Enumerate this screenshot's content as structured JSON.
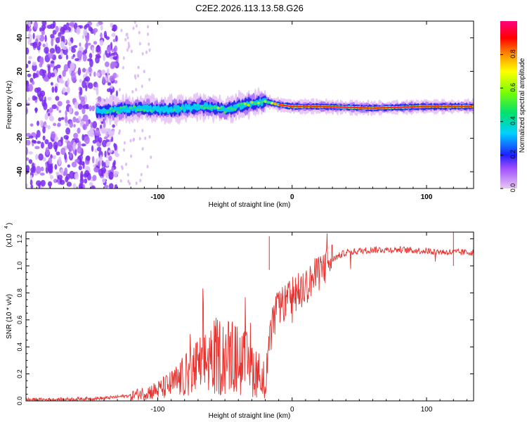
{
  "figure_title": "C2E2.2026.113.13.58.G26",
  "chart_data": [
    {
      "type": "heatmap",
      "title": "C2E2.2026.113.13.58.G26",
      "xlabel": "Height of straight line (km)",
      "ylabel": "Frequency (Hz)",
      "xlim": [
        -198,
        135
      ],
      "ylim": [
        -50,
        50
      ],
      "x_ticks": [
        -100,
        0,
        100
      ],
      "y_ticks": [
        -40,
        -20,
        0,
        20,
        40
      ],
      "colorbar": {
        "label": "Normalized spectral amplitude",
        "range": [
          0,
          1
        ],
        "ticks": [
          "0.0",
          "0.2",
          "0.4",
          "0.6",
          "0.8"
        ],
        "tick_values": [
          0.0,
          0.2,
          0.4,
          0.6,
          0.8
        ]
      },
      "ridge": {
        "description": "frequency centre of the signal band vs height",
        "x": [
          -145,
          -130,
          -110,
          -95,
          -80,
          -65,
          -50,
          -35,
          -20,
          -10,
          0,
          20,
          60,
          100,
          135
        ],
        "freq": [
          -4,
          -3,
          -2,
          -3,
          -2,
          -1,
          -3,
          0,
          2,
          0,
          -1,
          -1,
          -2,
          -1,
          -1
        ]
      },
      "noise_region_x": [
        -198,
        -130
      ],
      "signal_onset_x": -145
    },
    {
      "type": "line",
      "xlabel": "Height of straight line (km)",
      "ylabel": "SNR (10 * v/v)",
      "y_scale_label": "(x10",
      "y_scale_exp": "4",
      "xlim": [
        -198,
        135
      ],
      "ylim": [
        0,
        1.25
      ],
      "x_ticks": [
        -100,
        0,
        100
      ],
      "y_ticks": [
        "0.0",
        "0.2",
        "0.4",
        "0.6",
        "0.8",
        "1.0",
        "1.2"
      ],
      "y_tick_values": [
        0.0,
        0.2,
        0.4,
        0.6,
        0.8,
        1.0,
        1.2
      ],
      "series": [
        {
          "name": "SNR",
          "color": "#e8302c",
          "x": [
            -198,
            -180,
            -160,
            -140,
            -130,
            -120,
            -110,
            -100,
            -90,
            -80,
            -70,
            -60,
            -50,
            -40,
            -30,
            -20,
            -15,
            -10,
            -5,
            0,
            10,
            20,
            30,
            40,
            50,
            60,
            80,
            100,
            120,
            135
          ],
          "y": [
            0.01,
            0.01,
            0.015,
            0.02,
            0.03,
            0.04,
            0.06,
            0.08,
            0.12,
            0.18,
            0.25,
            0.32,
            0.34,
            0.3,
            0.25,
            0.15,
            0.55,
            0.7,
            0.72,
            0.78,
            0.85,
            0.95,
            1.05,
            1.1,
            1.11,
            1.12,
            1.12,
            1.11,
            1.1,
            1.1
          ]
        }
      ],
      "annotations": [
        {
          "x": -17,
          "y": 1.22
        },
        {
          "x": 120,
          "y": 1.25
        }
      ]
    }
  ]
}
